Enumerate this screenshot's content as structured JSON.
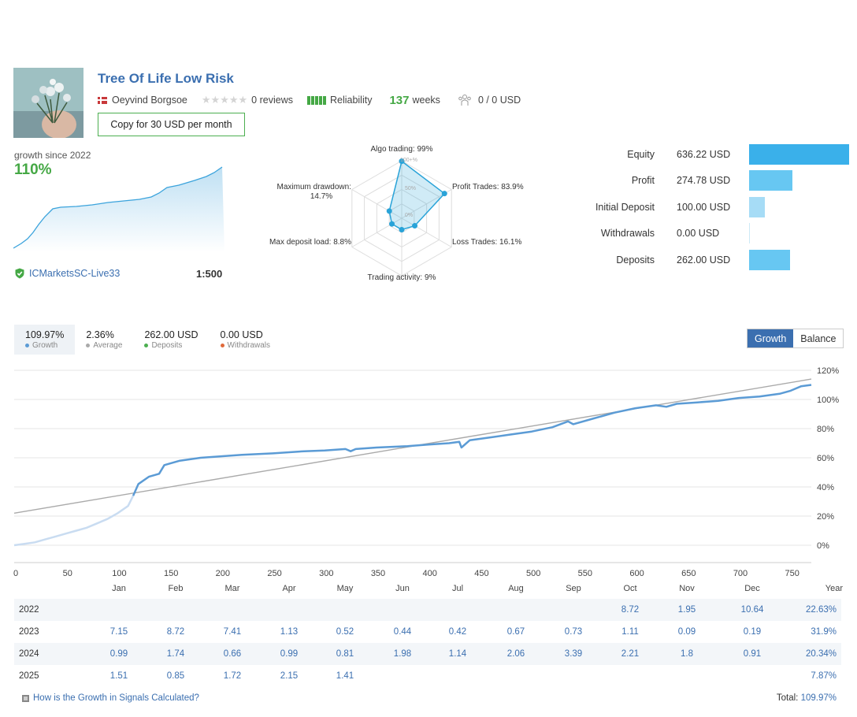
{
  "header": {
    "title": "Tree Of Life Low Risk",
    "author": "Oeyvind Borgsoe",
    "reviews": "0 reviews",
    "reliability_label": "Reliability",
    "weeks_value": "137",
    "weeks_label": "weeks",
    "subscribers": "0 / 0 USD",
    "copy_button": "Copy for 30 USD per month"
  },
  "summary": {
    "growth_since": "growth since 2022",
    "growth_value": "110%",
    "broker": "ICMarketsSC-Live33",
    "leverage": "1:500"
  },
  "radar": {
    "labels": {
      "algo": "Algo trading: 99%",
      "profit": "Profit Trades: 83.9%",
      "loss": "Loss Trades: 16.1%",
      "activity": "Trading activity: 9%",
      "deposit_load": "Max deposit load: 8.8%",
      "drawdown_1": "Maximum drawdown:",
      "drawdown_2": "14.7%"
    },
    "scale": {
      "top": "100+%",
      "mid": "50%",
      "low": "0%"
    },
    "values": [
      0.99,
      0.839,
      0.161,
      0.09,
      0.088,
      0.147
    ],
    "color": "#29a3d8"
  },
  "stats": [
    {
      "label": "Equity",
      "value": "636.22 USD",
      "amount": 636.22
    },
    {
      "label": "Profit",
      "value": "274.78 USD",
      "amount": 274.78
    },
    {
      "label": "Initial Deposit",
      "value": "100.00 USD",
      "amount": 100.0
    },
    {
      "label": "Withdrawals",
      "value": "0.00 USD",
      "amount": 0
    },
    {
      "label": "Deposits",
      "value": "262.00 USD",
      "amount": 262.0
    }
  ],
  "tabs": [
    {
      "value": "109.97%",
      "label": "Growth",
      "color": "#5b9bd5"
    },
    {
      "value": "2.36%",
      "label": "Average",
      "color": "#aaaaaa"
    },
    {
      "value": "262.00 USD",
      "label": "Deposits",
      "color": "#4caf50"
    },
    {
      "value": "0.00 USD",
      "label": "Withdrawals",
      "color": "#e06a3b"
    }
  ],
  "toggle": {
    "growth": "Growth",
    "balance": "Balance"
  },
  "chart_data": {
    "type": "line",
    "xlim": [
      0,
      770
    ],
    "ylim": [
      -10,
      120
    ],
    "x_ticks": [
      "0",
      "50",
      "100",
      "150",
      "200",
      "250",
      "300",
      "350",
      "400",
      "450",
      "500",
      "550",
      "600",
      "650",
      "700",
      "750"
    ],
    "y_ticks": [
      "120%",
      "100%",
      "80%",
      "60%",
      "40%",
      "20%",
      "0%"
    ],
    "series": [
      {
        "x": [
          0,
          10,
          20,
          30,
          40,
          50,
          60,
          70,
          80,
          90,
          100,
          110,
          115,
          120,
          130,
          140,
          145,
          150,
          160,
          180,
          200,
          220,
          250,
          280,
          300,
          320,
          325,
          330,
          350,
          380,
          400,
          420,
          430,
          432,
          440,
          460,
          480,
          500,
          520,
          535,
          540,
          560,
          580,
          600,
          620,
          630,
          640,
          660,
          680,
          700,
          720,
          740,
          750,
          760,
          770
        ],
        "y": [
          0,
          1,
          2,
          4,
          6,
          8,
          10,
          12,
          15,
          18,
          22,
          27,
          34,
          42,
          47,
          49,
          55,
          56,
          58,
          60,
          61,
          62,
          63,
          64.5,
          65,
          66,
          64.5,
          66,
          67,
          68,
          69,
          70,
          71,
          67,
          72,
          74,
          76,
          78,
          81,
          85,
          83,
          87,
          91,
          94,
          96,
          95,
          97,
          98,
          99,
          101,
          102,
          104,
          106,
          109,
          110
        ]
      },
      {
        "x": [
          0,
          770
        ],
        "y": [
          22,
          114
        ]
      }
    ]
  },
  "months_header": [
    "Jan",
    "Feb",
    "Mar",
    "Apr",
    "May",
    "Jun",
    "Jul",
    "Aug",
    "Sep",
    "Oct",
    "Nov",
    "Dec",
    "Year"
  ],
  "growth_table": [
    {
      "year": "2022",
      "months": [
        "",
        "",
        "",
        "",
        "",
        "",
        "",
        "",
        "",
        "8.72",
        "1.95",
        "10.64"
      ],
      "total": "22.63%"
    },
    {
      "year": "2023",
      "months": [
        "7.15",
        "8.72",
        "7.41",
        "1.13",
        "0.52",
        "0.44",
        "0.42",
        "0.67",
        "0.73",
        "1.11",
        "0.09",
        "0.19"
      ],
      "total": "31.9%"
    },
    {
      "year": "2024",
      "months": [
        "0.99",
        "1.74",
        "0.66",
        "0.99",
        "0.81",
        "1.98",
        "1.14",
        "2.06",
        "3.39",
        "2.21",
        "1.8",
        "0.91"
      ],
      "total": "20.34%"
    },
    {
      "year": "2025",
      "months": [
        "1.51",
        "0.85",
        "1.72",
        "2.15",
        "1.41",
        "",
        "",
        "",
        "",
        "",
        "",
        ""
      ],
      "total": "7.87%"
    }
  ],
  "footer": {
    "link": "How is the Growth in Signals Calculated?",
    "total_label": "Total:",
    "total_value": "109.97%"
  },
  "colors": {
    "accent": "#3b6fb0",
    "green": "#45a845",
    "bar": "#67c7f2",
    "line": "#5b9bd5"
  }
}
